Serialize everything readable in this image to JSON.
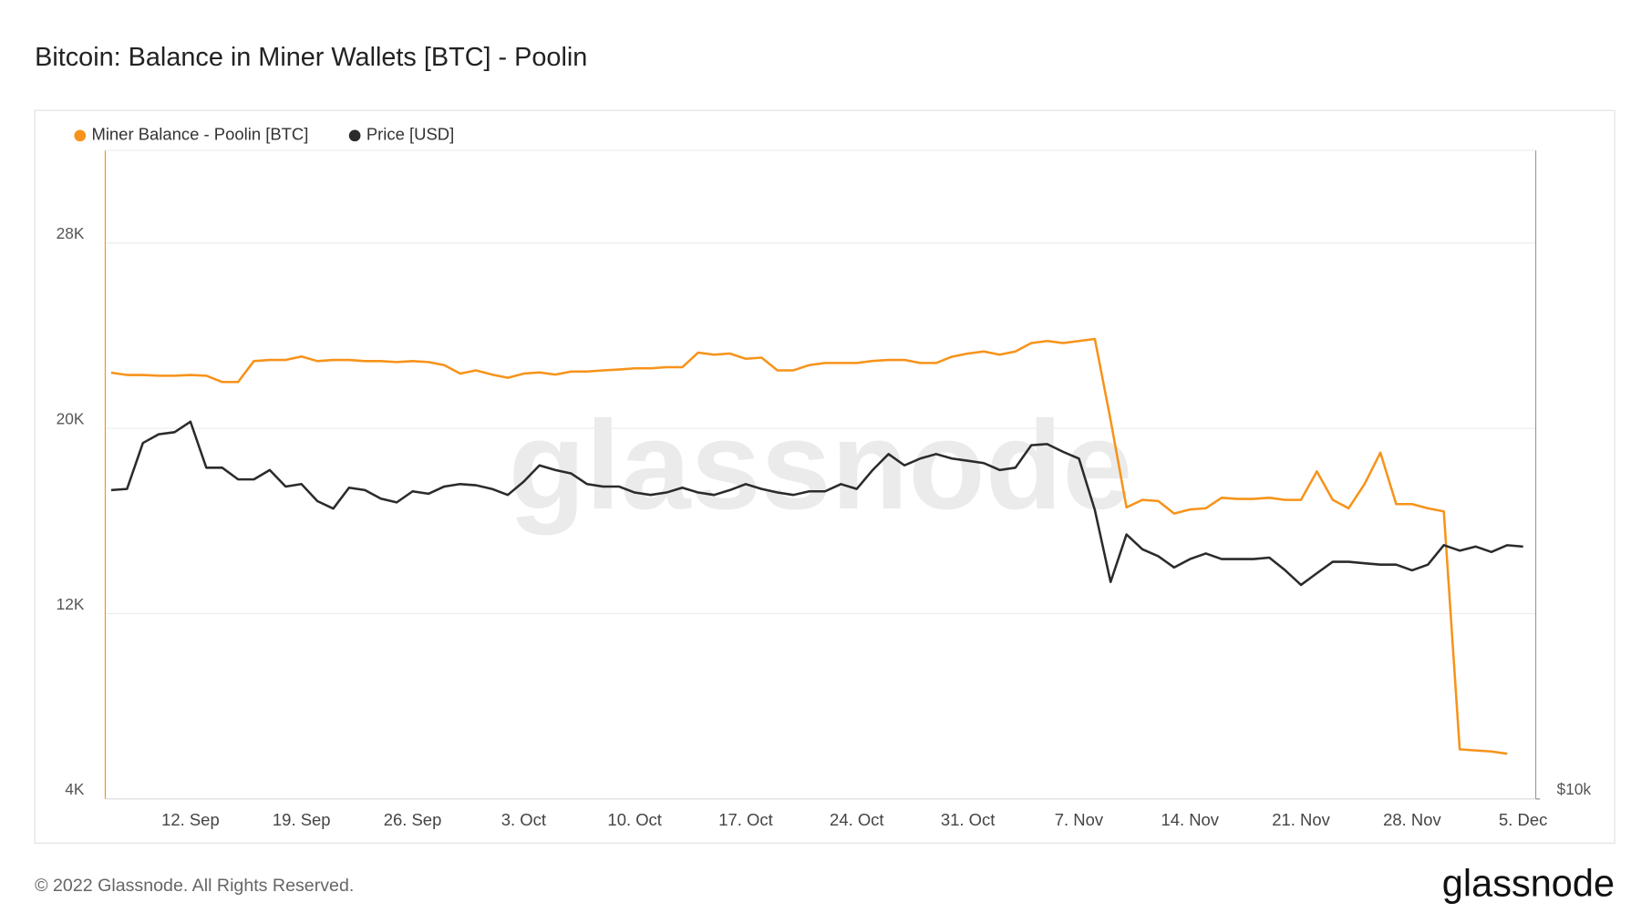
{
  "chart_data": {
    "type": "line",
    "title": "Bitcoin: Balance in Miner Wallets [BTC] - Poolin",
    "watermark": "glassnode",
    "categories": [
      null,
      null,
      null,
      null,
      null,
      "12. Sep",
      null,
      null,
      null,
      null,
      null,
      null,
      "19. Sep",
      null,
      null,
      null,
      null,
      null,
      null,
      "26. Sep",
      null,
      null,
      null,
      null,
      null,
      null,
      "3. Oct",
      null,
      null,
      null,
      null,
      null,
      null,
      "10. Oct",
      null,
      null,
      null,
      null,
      null,
      null,
      "17. Oct",
      null,
      null,
      null,
      null,
      null,
      null,
      "24. Oct",
      null,
      null,
      null,
      null,
      null,
      null,
      "31. Oct",
      null,
      null,
      null,
      null,
      null,
      null,
      "7. Nov",
      null,
      null,
      null,
      null,
      null,
      null,
      "14. Nov",
      null,
      null,
      null,
      null,
      null,
      null,
      "21. Nov",
      null,
      null,
      null,
      null,
      null,
      null,
      "28. Nov",
      null,
      null,
      null,
      null,
      null,
      null,
      "5. Dec"
    ],
    "series": [
      {
        "name": "Miner Balance - Poolin [BTC]",
        "color": "#f7931a",
        "axis": "y",
        "values": [
          22400,
          22300,
          22300,
          22270,
          22270,
          22300,
          22270,
          22000,
          22000,
          22900,
          22950,
          22950,
          23100,
          22900,
          22950,
          22950,
          22900,
          22900,
          22860,
          22900,
          22860,
          22730,
          22360,
          22500,
          22320,
          22180,
          22360,
          22410,
          22320,
          22450,
          22450,
          22500,
          22540,
          22590,
          22590,
          22640,
          22640,
          23270,
          23180,
          23230,
          23000,
          23050,
          22500,
          22500,
          22730,
          22820,
          22820,
          22820,
          22910,
          22950,
          22950,
          22820,
          22820,
          23090,
          23230,
          23320,
          23180,
          23320,
          23680,
          23770,
          23680,
          23770,
          23860,
          20360,
          16590,
          16910,
          16860,
          16320,
          16500,
          16550,
          17000,
          16950,
          16950,
          17000,
          16910,
          16910,
          18140,
          16910,
          16550,
          17590,
          18950,
          16730,
          16730,
          16550,
          16410,
          6140,
          6090,
          6050,
          5950,
          null
        ]
      },
      {
        "name": "Price [USD]",
        "color": "#2b2b2b",
        "axis": "y2",
        "values": [
          19350,
          19400,
          21400,
          21800,
          21900,
          22400,
          20300,
          20300,
          19800,
          19800,
          20200,
          19500,
          19600,
          18900,
          18600,
          19450,
          19350,
          19000,
          18850,
          19300,
          19200,
          19500,
          19600,
          19550,
          19400,
          19150,
          19700,
          20400,
          20200,
          20050,
          19600,
          19500,
          19500,
          19250,
          19150,
          19250,
          19450,
          19250,
          19150,
          19350,
          19600,
          19400,
          19250,
          19150,
          19300,
          19300,
          19600,
          19400,
          20200,
          20900,
          20400,
          20700,
          20900,
          20700,
          20600,
          20500,
          20200,
          20300,
          21300,
          21350,
          21000,
          20700,
          18550,
          15900,
          17600,
          17050,
          16800,
          16400,
          16700,
          16900,
          16700,
          16700,
          16700,
          16750,
          16300,
          15800,
          16200,
          16600,
          16600,
          16550,
          16500,
          16500,
          16300,
          16500,
          17200,
          17000,
          17150,
          16950,
          17200,
          17150
        ]
      }
    ],
    "ylim": [
      4000,
      32000
    ],
    "yticks": [
      {
        "value": 4000,
        "label": "4K"
      },
      {
        "value": 12000,
        "label": "12K"
      },
      {
        "value": 20000,
        "label": "20K"
      },
      {
        "value": 28000,
        "label": "28K"
      }
    ],
    "y2lim": [
      10000,
      40000
    ],
    "y2scale": "log",
    "y2ticks": [
      {
        "value": 10000,
        "label": "$10k"
      }
    ],
    "grid": true
  },
  "footer": {
    "copyright": "© 2022 Glassnode. All Rights Reserved.",
    "logo": "glassnode"
  }
}
